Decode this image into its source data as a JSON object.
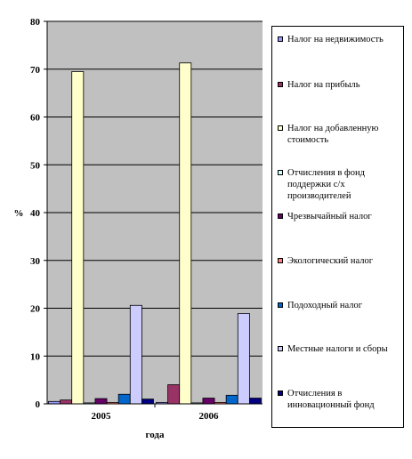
{
  "chart_data": {
    "type": "bar",
    "categories": [
      "2005",
      "2006"
    ],
    "xlabel": "года",
    "ylabel": "%",
    "ylim": [
      0,
      80
    ],
    "yticks": [
      "0",
      "10",
      "20",
      "30",
      "40",
      "50",
      "60",
      "70",
      "80"
    ],
    "grid": true,
    "legend_position": "right",
    "plot_background": "#C0C0C0",
    "series": [
      {
        "name": "Налог на недвижимость",
        "color": "#9999FF",
        "values": [
          0.5,
          0.3
        ]
      },
      {
        "name": "Налог на прибыль",
        "color": "#993366",
        "values": [
          0.8,
          4.0
        ]
      },
      {
        "name": "Налог на добавленную стоимость",
        "color": "#FFFFCC",
        "values": [
          69.5,
          71.3
        ]
      },
      {
        "name": "Отчисления в фонд поддержки с/х производителей",
        "color": "#CCFFFF",
        "values": [
          0.2,
          0.2
        ]
      },
      {
        "name": "Чрезвычайный налог",
        "color": "#660066",
        "values": [
          1.1,
          1.2
        ]
      },
      {
        "name": "Экологический налог",
        "color": "#FF8080",
        "values": [
          0.3,
          0.3
        ]
      },
      {
        "name": "Подоходный налог",
        "color": "#0066CC",
        "values": [
          2.0,
          1.8
        ]
      },
      {
        "name": "Местные налоги и сборы",
        "color": "#CCCCFF",
        "values": [
          20.6,
          18.9
        ]
      },
      {
        "name": "Отчисления в инновационный фонд",
        "color": "#000080",
        "values": [
          1.0,
          1.2
        ]
      }
    ]
  }
}
